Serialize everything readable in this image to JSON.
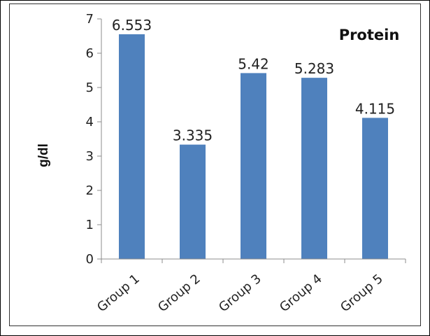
{
  "chart_data": {
    "type": "bar",
    "title": "Protein",
    "xlabel": "",
    "ylabel": "g/dl",
    "categories": [
      "Group 1",
      "Group 2",
      "Group 3",
      "Group 4",
      "Group 5"
    ],
    "values": [
      6.553,
      3.335,
      5.42,
      5.283,
      4.115
    ],
    "data_labels": [
      "6.553",
      "3.335",
      "5.42",
      "5.283",
      "4.115"
    ],
    "ylim": [
      0,
      7
    ],
    "yticks": [
      "0",
      "1",
      "2",
      "3",
      "4",
      "5",
      "6",
      "7"
    ],
    "grid": false,
    "legend": "none",
    "bar_color": "#4F81BD"
  }
}
